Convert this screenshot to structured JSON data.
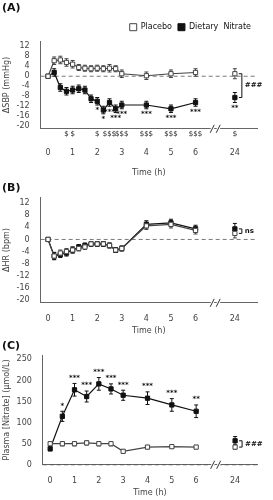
{
  "chart_data": [
    {
      "type": "line",
      "title": "(A)",
      "x_label": "Time (h)",
      "y_label": "ΔSBP (mmHg)",
      "x": [
        0,
        0.25,
        0.5,
        0.75,
        1.0,
        1.25,
        1.5,
        1.75,
        2.0,
        2.25,
        2.5,
        2.75,
        3.0,
        4.0,
        5.0,
        6.0,
        24
      ],
      "xlim": [
        -0.3,
        24.9
      ],
      "xticks": [
        0,
        1,
        2,
        3,
        4,
        5,
        6,
        24
      ],
      "ylim": [
        -21,
        14
      ],
      "yticks": [
        -20,
        -16,
        -12,
        -8,
        -4,
        0,
        4,
        8,
        12
      ],
      "grid": false,
      "legend": "upper right",
      "hline": 0,
      "series": [
        {
          "name": "Placebo",
          "color": "#444444",
          "marker": "open square",
          "line_style": "solid",
          "values": [
            0,
            6.2,
            6.5,
            5.5,
            4.8,
            3.5,
            3.2,
            3.0,
            3.2,
            3.0,
            3.2,
            3.0,
            1.0,
            0.2,
            1.0,
            1.5,
            1.0
          ],
          "errors": [
            0.0,
            1.5,
            1.5,
            1.5,
            1.5,
            1.2,
            1.2,
            1.2,
            1.2,
            1.2,
            1.5,
            1.2,
            1.5,
            1.5,
            1.5,
            1.5,
            2.0
          ]
        },
        {
          "name": "Dietary  Nitrate",
          "color": "#111111",
          "marker": "square",
          "line_style": "solid",
          "values": [
            0,
            1.5,
            -4.5,
            -6.0,
            -5.5,
            -5.0,
            -5.5,
            -9.0,
            -10.0,
            -13.5,
            -10.5,
            -13.0,
            -11.5,
            -11.5,
            -13.0,
            -10.5,
            -8.5
          ],
          "errors": [
            0.0,
            1.5,
            1.5,
            1.5,
            1.5,
            1.5,
            1.5,
            1.5,
            1.5,
            1.5,
            1.5,
            1.5,
            1.5,
            1.5,
            1.5,
            1.5,
            2.0
          ]
        }
      ],
      "annotations": [
        {
          "text": "*",
          "x": 2.0,
          "series": "Dietary  Nitrate"
        },
        {
          "text": "*",
          "x": 2.25,
          "series": "Dietary  Nitrate"
        },
        {
          "text": "***",
          "x": 2.5,
          "series": "Dietary  Nitrate"
        },
        {
          "text": "***",
          "x": 2.75,
          "series": "Dietary  Nitrate"
        },
        {
          "text": "***",
          "x": 3.0,
          "series": "Dietary  Nitrate"
        },
        {
          "text": "***",
          "x": 4.0,
          "series": "Dietary  Nitrate"
        },
        {
          "text": "***",
          "x": 5.0,
          "series": "Dietary  Nitrate"
        },
        {
          "text": "***",
          "x": 6.0,
          "series": "Dietary  Nitrate"
        },
        {
          "text": "**",
          "x": 24,
          "series": "Dietary  Nitrate"
        },
        {
          "text": "$",
          "x": 0.75
        },
        {
          "text": "$",
          "x": 1.0
        },
        {
          "text": "$",
          "x": 2.0
        },
        {
          "text": "$$$",
          "x": 2.5
        },
        {
          "text": "$$$",
          "x": 3.0
        },
        {
          "text": "$$$",
          "x": 4.0
        },
        {
          "text": "$$$",
          "x": 5.0
        },
        {
          "text": "$$$",
          "x": 6.0
        },
        {
          "text": "$",
          "x": 24
        }
      ],
      "brackets": [
        {
          "text": "###",
          "x": 24
        }
      ]
    },
    {
      "type": "line",
      "title": "(B)",
      "x_label": "Time (h)",
      "y_label": "ΔHR (bpm)",
      "x": [
        0,
        0.25,
        0.5,
        0.75,
        1.0,
        1.25,
        1.5,
        1.75,
        2.0,
        2.25,
        2.5,
        2.75,
        3.0,
        4.0,
        5.0,
        6.0,
        24
      ],
      "xlim": [
        -0.3,
        24.9
      ],
      "xticks": [
        0,
        1,
        2,
        3,
        4,
        5,
        6,
        24
      ],
      "ylim": [
        -21,
        14
      ],
      "yticks": [
        -20,
        -16,
        -12,
        -8,
        -4,
        0,
        4,
        8,
        12
      ],
      "grid": false,
      "hline": 0,
      "series": [
        {
          "name": "Placebo",
          "color": "#444444",
          "marker": "open square",
          "line_style": "solid",
          "values": [
            0,
            -5.5,
            -4.5,
            -4.0,
            -3.5,
            -3.0,
            -2.5,
            -1.5,
            -1.5,
            -1.5,
            -2.0,
            -3.5,
            -3.0,
            4.5,
            5.0,
            3.0,
            2.0
          ],
          "errors": [
            0.0,
            1.2,
            1.0,
            1.0,
            1.0,
            0.8,
            0.8,
            0.8,
            0.8,
            0.8,
            0.8,
            0.8,
            0.8,
            1.2,
            1.2,
            1.2,
            1.5
          ]
        },
        {
          "name": "Dietary  Nitrate",
          "color": "#111111",
          "marker": "square",
          "line_style": "solid",
          "values": [
            0,
            -5.5,
            -5.0,
            -4.5,
            -3.5,
            -2.5,
            -2.0,
            -1.5,
            -1.5,
            -1.5,
            -2.0,
            -3.5,
            -3.0,
            5.0,
            5.5,
            3.5,
            3.5
          ],
          "errors": [
            0.0,
            1.2,
            1.0,
            1.0,
            1.0,
            0.8,
            0.8,
            0.8,
            0.8,
            0.8,
            0.8,
            0.8,
            0.8,
            1.2,
            1.2,
            1.2,
            1.8
          ]
        }
      ],
      "annotations": [],
      "brackets": [
        {
          "text": "ns",
          "x": 24
        }
      ]
    },
    {
      "type": "line",
      "title": "(C)",
      "x_label": "Time (h)",
      "y_label": "Plasma [Nitrate] (μmol/L)",
      "x": [
        0,
        0.5,
        1.0,
        1.5,
        2.0,
        2.5,
        3.0,
        4.0,
        5.0,
        6.0,
        24
      ],
      "xlim": [
        -0.3,
        24.9
      ],
      "xticks": [
        0,
        1,
        2,
        3,
        4,
        5,
        6,
        24
      ],
      "ylim": [
        0,
        260
      ],
      "yticks": [
        0,
        50,
        100,
        150,
        200,
        250
      ],
      "grid": false,
      "hline": 0,
      "series": [
        {
          "name": "Placebo",
          "color": "#444444",
          "marker": "open square",
          "line_style": "solid",
          "values": [
            50,
            50,
            50,
            52,
            50,
            50,
            32,
            42,
            43,
            42,
            42
          ],
          "errors": [
            5,
            5,
            5,
            5,
            5,
            5,
            4,
            4,
            4,
            4,
            5
          ]
        },
        {
          "name": "Dietary  Nitrate",
          "color": "#111111",
          "marker": "square",
          "line_style": "solid",
          "values": [
            38,
            115,
            178,
            162,
            192,
            180,
            165,
            158,
            142,
            127,
            57
          ],
          "errors": [
            5,
            12,
            15,
            13,
            15,
            12,
            12,
            15,
            15,
            15,
            10
          ]
        }
      ],
      "annotations": [
        {
          "text": "*",
          "x": 0.5,
          "series": "Dietary  Nitrate"
        },
        {
          "text": "***",
          "x": 1.0,
          "series": "Dietary  Nitrate"
        },
        {
          "text": "***",
          "x": 1.5,
          "series": "Dietary  Nitrate"
        },
        {
          "text": "***",
          "x": 2.0,
          "series": "Dietary  Nitrate"
        },
        {
          "text": "***",
          "x": 2.5,
          "series": "Dietary  Nitrate"
        },
        {
          "text": "***",
          "x": 3.0,
          "series": "Dietary  Nitrate"
        },
        {
          "text": "***",
          "x": 4.0,
          "series": "Dietary  Nitrate"
        },
        {
          "text": "***",
          "x": 5.0,
          "series": "Dietary  Nitrate"
        },
        {
          "text": "**",
          "x": 6.0,
          "series": "Dietary  Nitrate"
        }
      ],
      "brackets": [
        {
          "text": "###",
          "x": 24
        }
      ]
    }
  ]
}
